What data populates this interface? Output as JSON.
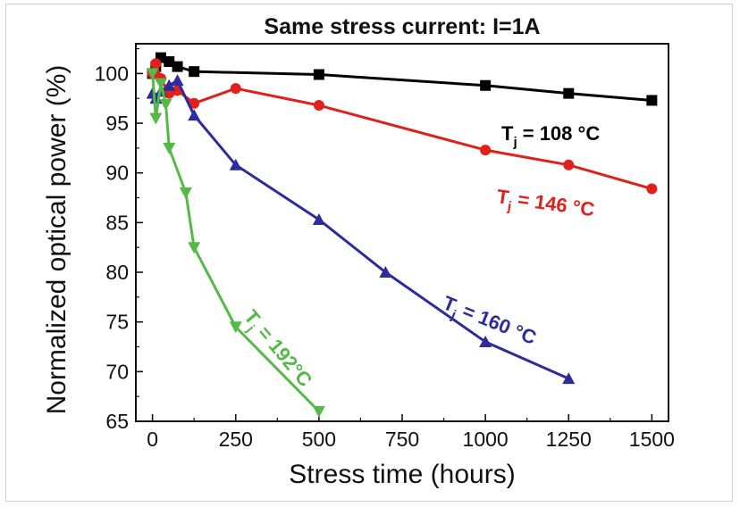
{
  "chart_data": {
    "type": "line",
    "title": "Same stress current: I=1A",
    "xlabel": "Stress time (hours)",
    "ylabel": "Normalized optical power (%)",
    "xlim": [
      -50,
      1550
    ],
    "ylim": [
      65,
      103
    ],
    "xticks": [
      0,
      250,
      500,
      750,
      1000,
      1250,
      1500
    ],
    "yticks": [
      65,
      70,
      75,
      80,
      85,
      90,
      95,
      100
    ],
    "grid": false,
    "series": [
      {
        "name_main": "T",
        "name_sub": "j",
        "name_rest": " = 108 °C",
        "color": "#000000",
        "marker": "square",
        "x": [
          0,
          10,
          25,
          50,
          75,
          125,
          500,
          1000,
          1250,
          1500
        ],
        "y": [
          100.0,
          100.7,
          101.6,
          101.2,
          100.7,
          100.2,
          99.9,
          98.8,
          98.0,
          97.3
        ]
      },
      {
        "name_main": "T",
        "name_sub": "j",
        "name_rest": " = 146 °C",
        "color": "#e0201b",
        "marker": "circle",
        "x": [
          0,
          10,
          25,
          50,
          75,
          125,
          250,
          500,
          1000,
          1250,
          1500
        ],
        "y": [
          100.0,
          101.0,
          99.5,
          98.0,
          98.3,
          97.0,
          98.5,
          96.8,
          92.3,
          90.8,
          88.4
        ]
      },
      {
        "name_main": "T",
        "name_sub": "j",
        "name_rest": " = 160 °C",
        "color": "#2c2c9a",
        "marker": "triangle-up",
        "x": [
          0,
          10,
          25,
          50,
          75,
          125,
          250,
          500,
          700,
          1000,
          1250
        ],
        "y": [
          98.0,
          97.5,
          98.2,
          98.8,
          99.3,
          95.8,
          90.8,
          85.3,
          80.0,
          73.0,
          69.3
        ]
      },
      {
        "name_main": "T",
        "name_sub": "j",
        "name_rest": " = 192°C",
        "color": "#55b947",
        "marker": "triangle-down",
        "x": [
          0,
          10,
          25,
          40,
          50,
          100,
          125,
          250,
          500
        ],
        "y": [
          100.0,
          95.5,
          99.0,
          96.9,
          92.5,
          88.0,
          82.5,
          74.5,
          66.0
        ]
      }
    ]
  }
}
